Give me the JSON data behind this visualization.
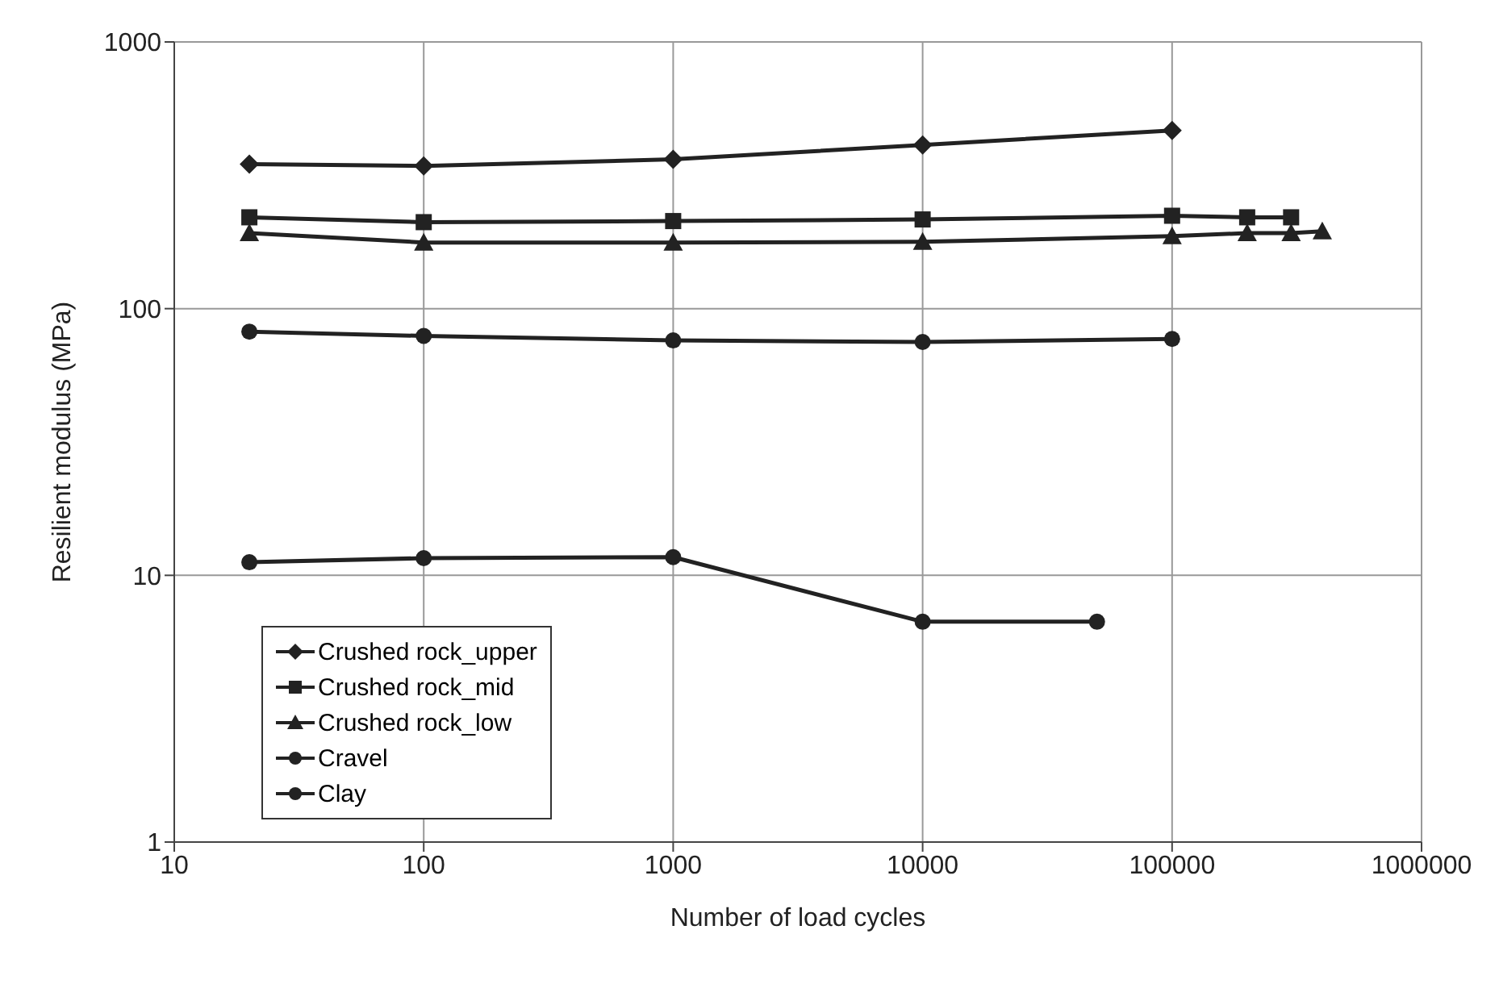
{
  "chart_data": {
    "type": "line",
    "xlabel": "Number of load cycles",
    "ylabel": "Resilient modulus (MPa)",
    "log": "xy",
    "grid": true,
    "legend": "bottom left",
    "line_style": "solid",
    "xlim": [
      10,
      1000000
    ],
    "xticks": [
      10,
      100,
      1000,
      10000,
      100000,
      1000000
    ],
    "ylim": [
      1,
      1000
    ],
    "yticks": [
      1,
      10,
      100,
      1000
    ],
    "series": [
      {
        "name": "Crushed rock_upper",
        "color": "#222222",
        "marker": "diamond",
        "x": [
          20,
          100,
          1000,
          10000,
          100000
        ],
        "values": [
          348,
          343,
          363,
          411,
          466
        ]
      },
      {
        "name": "Crushed rock_mid",
        "color": "#222222",
        "marker": "square",
        "x": [
          20,
          100,
          1000,
          10000,
          100000,
          200000,
          300000
        ],
        "values": [
          220,
          211,
          213,
          216,
          223,
          220,
          220
        ]
      },
      {
        "name": "Crushed rock_low",
        "color": "#222222",
        "marker": "triangle",
        "x": [
          20,
          100,
          1000,
          10000,
          100000,
          200000,
          300000,
          400000
        ],
        "values": [
          192,
          177,
          177,
          178,
          187,
          192,
          192,
          195
        ]
      },
      {
        "name": "Cravel",
        "color": "#222222",
        "marker": "circle",
        "x": [
          20,
          100,
          1000,
          10000,
          100000
        ],
        "values": [
          82,
          79,
          76,
          75,
          77
        ]
      },
      {
        "name": "Clay",
        "color": "#222222",
        "marker": "circle",
        "x": [
          20,
          100,
          1000,
          10000,
          50000
        ],
        "values": [
          11.2,
          11.6,
          11.7,
          6.7,
          6.7
        ]
      }
    ]
  }
}
